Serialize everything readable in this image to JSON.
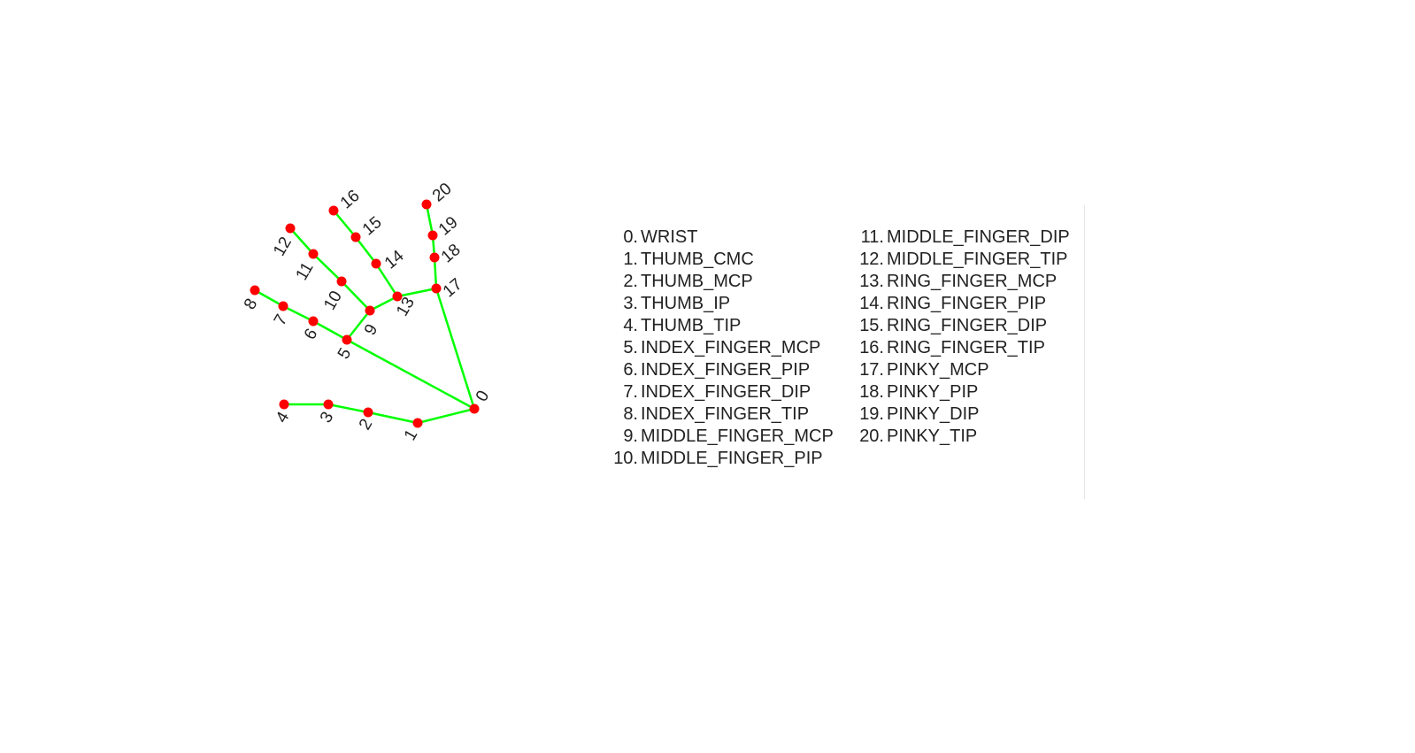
{
  "diagram": {
    "bone_color": "#00ff00",
    "joint_color": "#ff0000",
    "connections": [
      [
        0,
        1
      ],
      [
        1,
        2
      ],
      [
        2,
        3
      ],
      [
        3,
        4
      ],
      [
        0,
        5
      ],
      [
        5,
        6
      ],
      [
        6,
        7
      ],
      [
        7,
        8
      ],
      [
        5,
        9
      ],
      [
        9,
        10
      ],
      [
        10,
        11
      ],
      [
        11,
        12
      ],
      [
        9,
        13
      ],
      [
        13,
        14
      ],
      [
        14,
        15
      ],
      [
        15,
        16
      ],
      [
        13,
        17
      ],
      [
        17,
        18
      ],
      [
        18,
        19
      ],
      [
        19,
        20
      ],
      [
        0,
        17
      ]
    ],
    "landmark_labels": [
      "0",
      "1",
      "2",
      "3",
      "4",
      "5",
      "6",
      "7",
      "8",
      "9",
      "10",
      "11",
      "12",
      "13",
      "14",
      "15",
      "16",
      "17",
      "18",
      "19",
      "20"
    ]
  },
  "legend": {
    "left": [
      {
        "num": "0.",
        "name": "WRIST"
      },
      {
        "num": "1.",
        "name": "THUMB_CMC"
      },
      {
        "num": "2.",
        "name": "THUMB_MCP"
      },
      {
        "num": "3.",
        "name": "THUMB_IP"
      },
      {
        "num": "4.",
        "name": "THUMB_TIP"
      },
      {
        "num": "5.",
        "name": "INDEX_FINGER_MCP"
      },
      {
        "num": "6.",
        "name": "INDEX_FINGER_PIP"
      },
      {
        "num": "7.",
        "name": "INDEX_FINGER_DIP"
      },
      {
        "num": "8.",
        "name": "INDEX_FINGER_TIP"
      },
      {
        "num": "9.",
        "name": "MIDDLE_FINGER_MCP"
      },
      {
        "num": "10.",
        "name": "MIDDLE_FINGER_PIP"
      }
    ],
    "right": [
      {
        "num": "11.",
        "name": "MIDDLE_FINGER_DIP"
      },
      {
        "num": "12.",
        "name": "MIDDLE_FINGER_TIP"
      },
      {
        "num": "13.",
        "name": "RING_FINGER_MCP"
      },
      {
        "num": "14.",
        "name": "RING_FINGER_PIP"
      },
      {
        "num": "15.",
        "name": "RING_FINGER_DIP"
      },
      {
        "num": "16.",
        "name": "RING_FINGER_TIP"
      },
      {
        "num": "17.",
        "name": "PINKY_MCP"
      },
      {
        "num": "18.",
        "name": "PINKY_PIP"
      },
      {
        "num": "19.",
        "name": "PINKY_DIP"
      },
      {
        "num": "20.",
        "name": "PINKY_TIP"
      }
    ]
  }
}
